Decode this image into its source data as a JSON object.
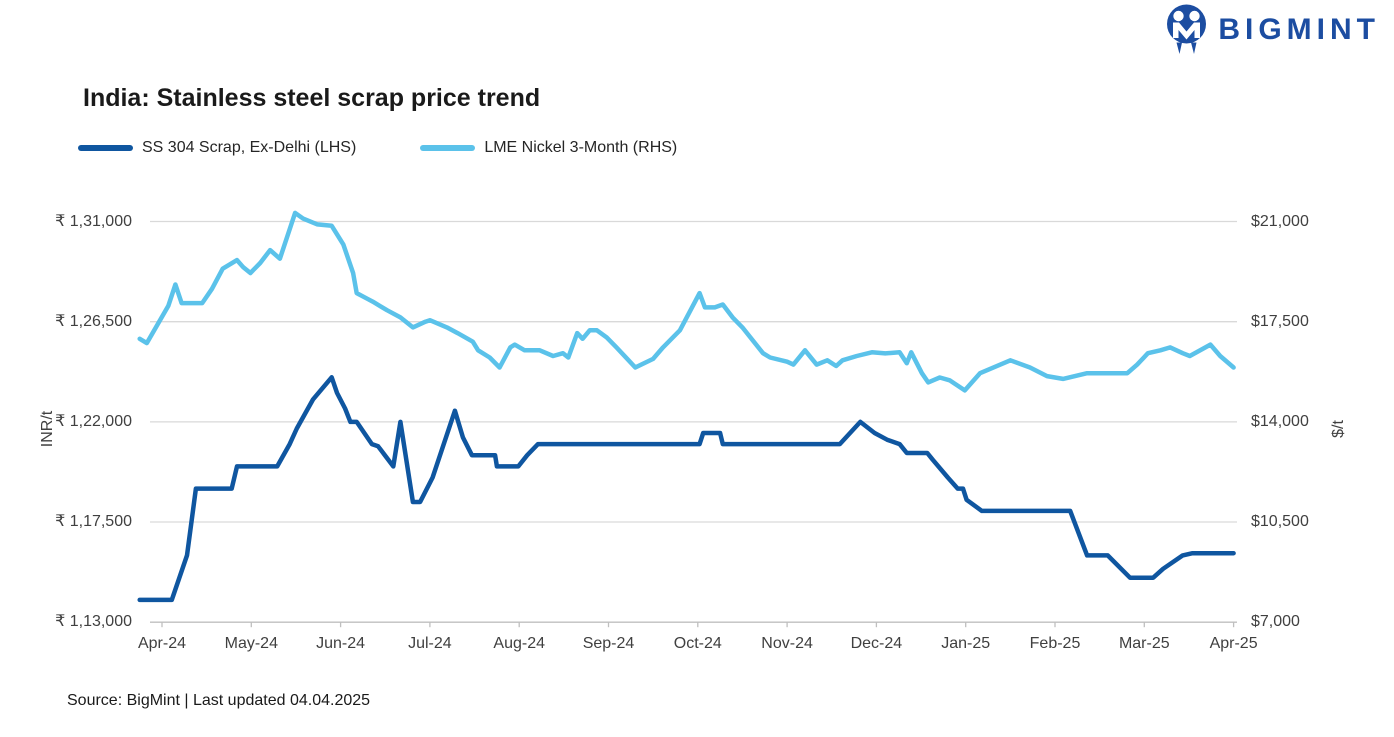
{
  "logo": {
    "text": "BIGMINT",
    "color": "#1C4DA1"
  },
  "title": "India: Stainless steel scrap price trend",
  "legend": [
    {
      "label": "SS 304 Scrap, Ex-Delhi (LHS)",
      "color": "#0F56A0"
    },
    {
      "label": "LME Nickel 3-Month (RHS)",
      "color": "#5BC2EA"
    }
  ],
  "source": "Source: BigMint | Last updated 04.04.2025",
  "chart_data": {
    "type": "line",
    "title": "India: Stainless steel scrap price trend",
    "grid": true,
    "grid_color": "#D9D9D9",
    "axis_color": "#BFBFBF",
    "x_tick_labels": [
      "Apr-24",
      "May-24",
      "Jun-24",
      "Jul-24",
      "Aug-24",
      "Sep-24",
      "Oct-24",
      "Nov-24",
      "Dec-24",
      "Jan-25",
      "Feb-25",
      "Mar-25",
      "Apr-25"
    ],
    "left_axis": {
      "title": "INR/t",
      "range": [
        113000,
        131000
      ],
      "tick_values": [
        113000,
        117500,
        122000,
        126500,
        131000
      ],
      "tick_labels": [
        "₹ 1,13,000",
        "₹ 1,17,500",
        "₹ 1,22,000",
        "₹ 1,26,500",
        "₹ 1,31,000"
      ]
    },
    "right_axis": {
      "title": "$/t",
      "range": [
        7000,
        21000
      ],
      "tick_values": [
        7000,
        10500,
        14000,
        17500,
        21000
      ],
      "tick_labels": [
        "$7,000",
        "$10,500",
        "$14,000",
        "$17,500",
        "$21,000"
      ]
    },
    "series": [
      {
        "name": "SS 304 Scrap, Ex-Delhi (LHS)",
        "axis": "left",
        "color": "#0F56A0",
        "unit": "INR/t",
        "points": [
          [
            -0.25,
            114000
          ],
          [
            0.11,
            114000
          ],
          [
            0.28,
            116000
          ],
          [
            0.38,
            119000
          ],
          [
            0.78,
            119000
          ],
          [
            0.84,
            120000
          ],
          [
            1.29,
            120000
          ],
          [
            1.43,
            121000
          ],
          [
            1.51,
            121700
          ],
          [
            1.69,
            123000
          ],
          [
            1.9,
            124000
          ],
          [
            1.96,
            123300
          ],
          [
            2.05,
            122600
          ],
          [
            2.11,
            122000
          ],
          [
            2.18,
            122000
          ],
          [
            2.35,
            121000
          ],
          [
            2.42,
            120900
          ],
          [
            2.59,
            120000
          ],
          [
            2.67,
            122000
          ],
          [
            2.81,
            118400
          ],
          [
            2.89,
            118400
          ],
          [
            3.03,
            119500
          ],
          [
            3.28,
            122500
          ],
          [
            3.37,
            121300
          ],
          [
            3.47,
            120500
          ],
          [
            3.73,
            120500
          ],
          [
            3.75,
            120000
          ],
          [
            3.99,
            120000
          ],
          [
            4.09,
            120500
          ],
          [
            4.21,
            121000
          ],
          [
            6.02,
            121000
          ],
          [
            6.06,
            121500
          ],
          [
            6.25,
            121500
          ],
          [
            6.28,
            121000
          ],
          [
            7.59,
            121000
          ],
          [
            7.82,
            122000
          ],
          [
            7.98,
            121500
          ],
          [
            8.12,
            121200
          ],
          [
            8.26,
            121000
          ],
          [
            8.34,
            120600
          ],
          [
            8.57,
            120600
          ],
          [
            8.63,
            120300
          ],
          [
            8.8,
            119500
          ],
          [
            8.91,
            119000
          ],
          [
            8.97,
            119000
          ],
          [
            9.01,
            118500
          ],
          [
            9.18,
            118000
          ],
          [
            10.17,
            118000
          ],
          [
            10.36,
            116000
          ],
          [
            10.59,
            116000
          ],
          [
            10.84,
            115000
          ],
          [
            11.1,
            115000
          ],
          [
            11.21,
            115400
          ],
          [
            11.43,
            116000
          ],
          [
            11.54,
            116100
          ],
          [
            12.0,
            116100
          ]
        ]
      },
      {
        "name": "LME Nickel 3-Month (RHS)",
        "axis": "right",
        "color": "#5BC2EA",
        "unit": "$/t",
        "points": [
          [
            -0.25,
            16900
          ],
          [
            -0.17,
            16750
          ],
          [
            0.07,
            18050
          ],
          [
            0.15,
            18800
          ],
          [
            0.22,
            18150
          ],
          [
            0.45,
            18150
          ],
          [
            0.56,
            18650
          ],
          [
            0.68,
            19350
          ],
          [
            0.84,
            19650
          ],
          [
            0.91,
            19400
          ],
          [
            0.99,
            19200
          ],
          [
            1.1,
            19550
          ],
          [
            1.21,
            20000
          ],
          [
            1.32,
            19700
          ],
          [
            1.49,
            21300
          ],
          [
            1.58,
            21100
          ],
          [
            1.74,
            20900
          ],
          [
            1.9,
            20850
          ],
          [
            2.03,
            20200
          ],
          [
            2.14,
            19200
          ],
          [
            2.18,
            18500
          ],
          [
            2.3,
            18300
          ],
          [
            2.36,
            18200
          ],
          [
            2.52,
            17900
          ],
          [
            2.67,
            17650
          ],
          [
            2.81,
            17300
          ],
          [
            2.95,
            17500
          ],
          [
            3.0,
            17550
          ],
          [
            3.19,
            17300
          ],
          [
            3.31,
            17100
          ],
          [
            3.48,
            16800
          ],
          [
            3.54,
            16500
          ],
          [
            3.67,
            16250
          ],
          [
            3.78,
            15900
          ],
          [
            3.9,
            16600
          ],
          [
            3.95,
            16700
          ],
          [
            4.06,
            16500
          ],
          [
            4.23,
            16500
          ],
          [
            4.38,
            16300
          ],
          [
            4.49,
            16400
          ],
          [
            4.55,
            16250
          ],
          [
            4.65,
            17100
          ],
          [
            4.71,
            16900
          ],
          [
            4.79,
            17200
          ],
          [
            4.87,
            17200
          ],
          [
            4.98,
            16950
          ],
          [
            5.09,
            16600
          ],
          [
            5.21,
            16200
          ],
          [
            5.3,
            15900
          ],
          [
            5.5,
            16200
          ],
          [
            5.61,
            16600
          ],
          [
            5.8,
            17200
          ],
          [
            6.02,
            18500
          ],
          [
            6.08,
            18000
          ],
          [
            6.19,
            18000
          ],
          [
            6.28,
            18100
          ],
          [
            6.39,
            17650
          ],
          [
            6.5,
            17300
          ],
          [
            6.73,
            16400
          ],
          [
            6.81,
            16250
          ],
          [
            7.0,
            16100
          ],
          [
            7.07,
            16000
          ],
          [
            7.2,
            16500
          ],
          [
            7.33,
            16000
          ],
          [
            7.45,
            16150
          ],
          [
            7.55,
            15950
          ],
          [
            7.62,
            16150
          ],
          [
            7.78,
            16300
          ],
          [
            7.95,
            16430
          ],
          [
            8.1,
            16390
          ],
          [
            8.26,
            16430
          ],
          [
            8.34,
            16050
          ],
          [
            8.39,
            16430
          ],
          [
            8.51,
            15700
          ],
          [
            8.58,
            15380
          ],
          [
            8.71,
            15550
          ],
          [
            8.82,
            15450
          ],
          [
            8.99,
            15100
          ],
          [
            9.16,
            15700
          ],
          [
            9.5,
            16150
          ],
          [
            9.72,
            15900
          ],
          [
            9.91,
            15600
          ],
          [
            10.09,
            15500
          ],
          [
            10.36,
            15700
          ],
          [
            10.58,
            15700
          ],
          [
            10.81,
            15700
          ],
          [
            10.92,
            16000
          ],
          [
            11.04,
            16400
          ],
          [
            11.18,
            16500
          ],
          [
            11.29,
            16600
          ],
          [
            11.43,
            16400
          ],
          [
            11.51,
            16300
          ],
          [
            11.74,
            16700
          ],
          [
            11.85,
            16300
          ],
          [
            12.0,
            15900
          ]
        ]
      }
    ]
  }
}
